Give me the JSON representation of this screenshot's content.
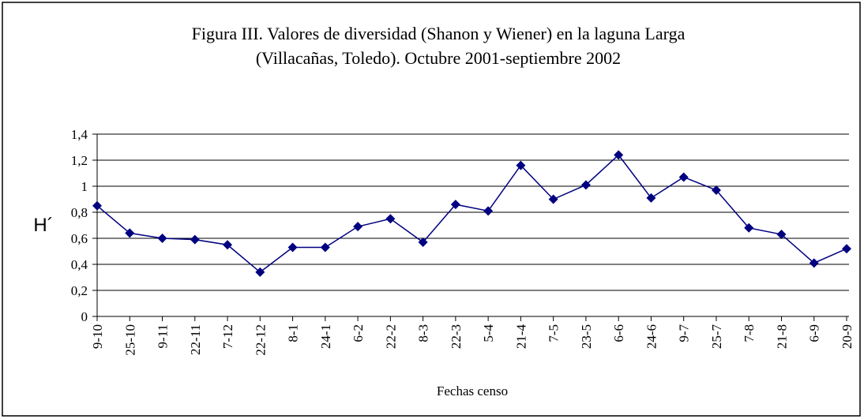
{
  "chart_data": {
    "type": "line",
    "title": "Figura III. Valores de diversidad (Shanon y Wiener) en la laguna Larga",
    "subtitle": "(Villacañas, Toledo). Octubre 2001-septiembre 2002",
    "y_label": "H´",
    "x_label": "Fechas censo",
    "categories": [
      "9-10",
      "25-10",
      "9-11",
      "22-11",
      "7-12",
      "22-12",
      "8-1",
      "24-1",
      "6-2",
      "22-2",
      "8-3",
      "22-3",
      "5-4",
      "21-4",
      "7-5",
      "23-5",
      "6-6",
      "24-6",
      "9-7",
      "25-7",
      "7-8",
      "21-8",
      "6-9",
      "20-9"
    ],
    "series": [
      {
        "color": "#000080",
        "values": [
          0.85,
          0.64,
          0.6,
          0.59,
          0.55,
          0.34,
          0.53,
          0.53,
          0.69,
          0.75,
          0.57,
          0.86,
          0.81,
          1.16,
          0.9,
          1.01,
          1.24,
          0.91,
          1.07,
          0.97,
          0.68,
          0.63,
          0.41,
          0.52
        ]
      }
    ],
    "ylim": [
      0,
      1.4
    ],
    "yticks": [
      0,
      {
        "value": 0.2,
        "label": "0,2"
      },
      {
        "value": 0.4,
        "label": "0,4"
      },
      {
        "value": 0.6,
        "label": "0,6"
      },
      {
        "value": 0.8,
        "label": "0,8"
      },
      1,
      {
        "value": 1.2,
        "label": "1,2"
      },
      {
        "value": 1.4,
        "label": "1,4"
      }
    ],
    "grid": true
  }
}
